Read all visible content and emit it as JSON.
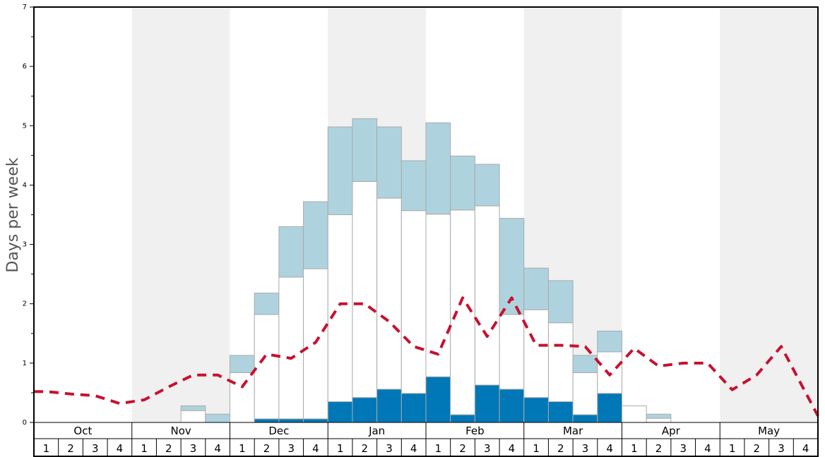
{
  "chart_data": {
    "type": "bar",
    "ylabel": "Days per week",
    "ylim": [
      0,
      7
    ],
    "y_ticks": [
      "0",
      "1",
      "2",
      "3",
      "4",
      "5",
      "6",
      "7"
    ],
    "months": [
      "Oct",
      "Nov",
      "Dec",
      "Jan",
      "Feb",
      "Mar",
      "Apr",
      "May"
    ],
    "week_labels": [
      "1",
      "2",
      "3",
      "4"
    ],
    "shaded_months": [
      "Nov",
      "Jan",
      "Mar",
      "May"
    ],
    "colors": {
      "dark": "#0077b6",
      "light": "#aed3df",
      "white": "#ffffff",
      "bar_edge": "#aaaaaa",
      "line": "#c8102e",
      "shade": "#f0f0f0"
    },
    "series": [
      {
        "key": "dark",
        "values": [
          0,
          0,
          0,
          0,
          0,
          0,
          0,
          0,
          0,
          0.06,
          0.06,
          0.06,
          0.35,
          0.42,
          0.56,
          0.49,
          0.77,
          0.13,
          0.63,
          0.56,
          0.42,
          0.35,
          0.13,
          0.49,
          0,
          0,
          0,
          0,
          0,
          0,
          0,
          0
        ]
      },
      {
        "key": "white",
        "values": [
          0,
          0,
          0,
          0,
          0,
          0,
          0.2,
          0,
          0.84,
          1.76,
          2.39,
          2.53,
          3.15,
          3.64,
          3.22,
          3.08,
          2.74,
          3.45,
          3.02,
          1.26,
          1.48,
          1.33,
          0.71,
          0.7,
          0.28,
          0.07,
          0,
          0,
          0,
          0,
          0,
          0
        ]
      },
      {
        "key": "light",
        "values": [
          0,
          0,
          0,
          0,
          0,
          0,
          0.08,
          0.14,
          0.29,
          0.36,
          0.85,
          1.13,
          1.48,
          1.06,
          1.2,
          0.84,
          1.54,
          0.91,
          0.7,
          1.62,
          0.7,
          0.71,
          0.29,
          0.35,
          0,
          0.07,
          0,
          0,
          0,
          0,
          0,
          0
        ]
      }
    ],
    "line": {
      "style": "dashed",
      "values": [
        0.52,
        0.48,
        0.45,
        0.32,
        0.38,
        0.6,
        0.8,
        0.8,
        0.6,
        1.15,
        1.08,
        1.35,
        2.0,
        2.0,
        1.7,
        1.28,
        1.15,
        2.1,
        1.45,
        2.1,
        1.3,
        1.3,
        1.28,
        0.8,
        1.25,
        0.95,
        1.0,
        1.0,
        0.55,
        0.8,
        1.28,
        0.5
      ]
    }
  }
}
